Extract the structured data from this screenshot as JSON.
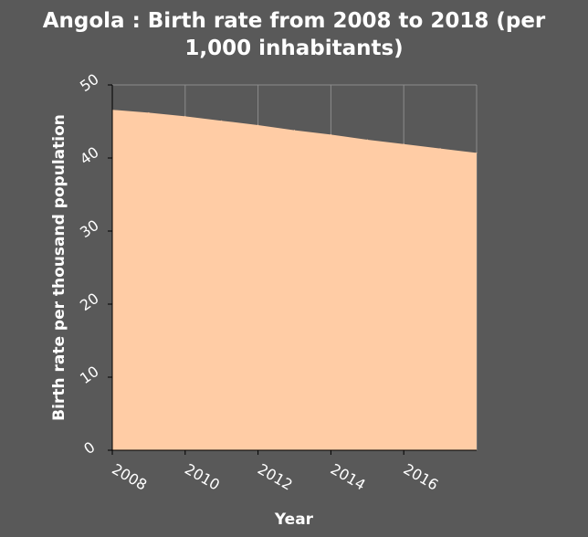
{
  "chart_data": {
    "type": "area",
    "title_line1": "Angola : Birth rate from 2008 to 2018 (per",
    "title_line2": "1,000 inhabitants)",
    "xlabel": "Year",
    "ylabel": "Birth rate per thousand population",
    "x": [
      2008,
      2009,
      2010,
      2011,
      2012,
      2013,
      2014,
      2015,
      2016,
      2017,
      2018
    ],
    "values": [
      46.6,
      46.2,
      45.7,
      45.1,
      44.5,
      43.8,
      43.2,
      42.5,
      41.9,
      41.3,
      40.7
    ],
    "xlim": [
      2008,
      2018
    ],
    "ylim": [
      0,
      50
    ],
    "x_ticks": [
      2008,
      2010,
      2012,
      2014,
      2016
    ],
    "x_tick_labels": [
      "2008",
      "2010",
      "2012",
      "2014",
      "2016"
    ],
    "y_ticks": [
      0,
      10,
      20,
      30,
      40,
      50
    ],
    "y_tick_labels": [
      "0",
      "10",
      "20",
      "30",
      "40",
      "50"
    ],
    "grid": true,
    "fill_color": "#ffcca5",
    "background_color": "#595959",
    "grid_color": "#8c8c8c",
    "text_color": "#ffffff"
  }
}
